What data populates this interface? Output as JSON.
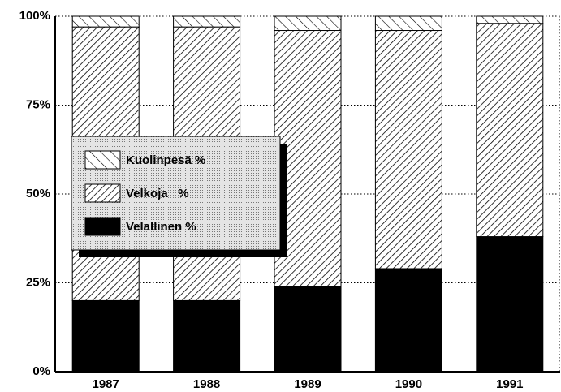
{
  "chart_data": {
    "type": "stacked_bar",
    "categories": [
      "1987",
      "1988",
      "1989",
      "1990",
      "1991"
    ],
    "series": [
      {
        "name": "Velallinen %",
        "color": "#000000",
        "hatch": "solid",
        "values": [
          20,
          20,
          24,
          29,
          38
        ]
      },
      {
        "name": "Velkoja   %",
        "color": "#000000",
        "hatch": "forward",
        "values": [
          77,
          77,
          72,
          67,
          60
        ]
      },
      {
        "name": "Kuolinpesä %",
        "color": "#000000",
        "hatch": "back",
        "values": [
          3,
          3,
          4,
          4,
          2
        ]
      }
    ],
    "ylim": [
      0,
      100
    ],
    "yticks": [
      {
        "value": 0,
        "label": "0%"
      },
      {
        "value": 25,
        "label": "25%"
      },
      {
        "value": 50,
        "label": "50%"
      },
      {
        "value": 75,
        "label": "75%"
      },
      {
        "value": 100,
        "label": "100%"
      }
    ],
    "grid": true,
    "legend": "left"
  }
}
